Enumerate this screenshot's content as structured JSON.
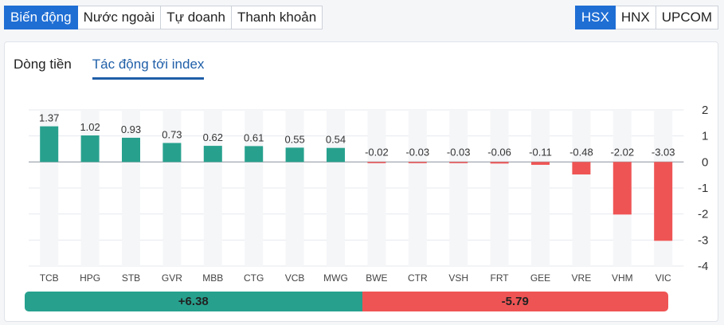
{
  "top_tabs": [
    "Biến động",
    "Nước ngoài",
    "Tự doanh",
    "Thanh khoản"
  ],
  "top_active": 0,
  "exchange_tabs": [
    "HSX",
    "HNX",
    "UPCOM"
  ],
  "exchange_active": 0,
  "sub_tabs": [
    "Dòng tiền",
    "Tác động tới index"
  ],
  "sub_active": 1,
  "colors": {
    "positive": "#27a18e",
    "negative": "#ef5454",
    "accent": "#1f6ed4"
  },
  "chart_data": {
    "type": "bar",
    "categories": [
      "TCB",
      "HPG",
      "STB",
      "GVR",
      "MBB",
      "CTG",
      "VCB",
      "MWG",
      "BWE",
      "CTR",
      "VSH",
      "FRT",
      "GEE",
      "VRE",
      "VHM",
      "VIC"
    ],
    "values": [
      1.37,
      1.02,
      0.93,
      0.73,
      0.62,
      0.61,
      0.55,
      0.54,
      -0.02,
      -0.03,
      -0.03,
      -0.06,
      -0.11,
      -0.48,
      -2.02,
      -3.03
    ],
    "value_labels": [
      "1.37",
      "1.02",
      "0.93",
      "0.73",
      "0.62",
      "0.61",
      "0.55",
      "0.54",
      "-0.02",
      "-0.03",
      "-0.03",
      "-0.06",
      "-0.11",
      "-0.48",
      "-2.02",
      "-3.03"
    ],
    "ylim": [
      -4,
      2
    ],
    "yticks": [
      2,
      1,
      0,
      -1,
      -2,
      -3,
      -4
    ],
    "ytick_labels": [
      "2",
      "1",
      "0",
      "-1",
      "-2",
      "-3",
      "-4"
    ],
    "grid": true
  },
  "summary": {
    "positive": 6.38,
    "negative": -5.79,
    "positive_label": "+6.38",
    "negative_label": "-5.79"
  }
}
